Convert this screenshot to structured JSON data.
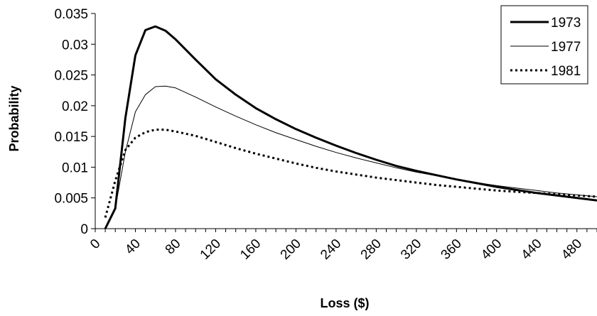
{
  "chart_data": {
    "type": "line",
    "title": "",
    "xlabel": "Loss ($)",
    "ylabel": "Probability",
    "xlim": [
      0,
      500
    ],
    "ylim": [
      0,
      0.035
    ],
    "x_ticks": [
      "0",
      "40",
      "80",
      "120",
      "160",
      "200",
      "240",
      "280",
      "320",
      "360",
      "400",
      "440",
      "480"
    ],
    "y_ticks": [
      "0",
      "0.005",
      "0.01",
      "0.015",
      "0.02",
      "0.025",
      "0.03",
      "0.035"
    ],
    "grid": false,
    "legend_position": "top-right",
    "series": [
      {
        "name": "1973",
        "style": "thick-solid",
        "x": [
          10,
          20,
          30,
          40,
          50,
          60,
          70,
          80,
          100,
          120,
          140,
          160,
          180,
          200,
          220,
          240,
          260,
          280,
          300,
          320,
          340,
          360,
          380,
          400,
          420,
          440,
          460,
          480,
          500
        ],
        "y": [
          0.0,
          0.0033,
          0.018,
          0.0282,
          0.0323,
          0.0329,
          0.0322,
          0.0308,
          0.0275,
          0.0243,
          0.0218,
          0.0196,
          0.0178,
          0.0162,
          0.0148,
          0.0135,
          0.0123,
          0.0112,
          0.0102,
          0.0094,
          0.0087,
          0.008,
          0.0074,
          0.0068,
          0.0063,
          0.0058,
          0.0054,
          0.005,
          0.0046
        ]
      },
      {
        "name": "1977",
        "style": "thin-solid",
        "x": [
          10,
          20,
          30,
          40,
          50,
          60,
          70,
          80,
          100,
          120,
          140,
          160,
          180,
          200,
          220,
          240,
          260,
          280,
          300,
          320,
          340,
          360,
          380,
          400,
          420,
          440,
          460,
          480,
          500
        ],
        "y": [
          0.0,
          0.0033,
          0.0125,
          0.019,
          0.0218,
          0.0231,
          0.0232,
          0.0229,
          0.0214,
          0.0198,
          0.0183,
          0.0169,
          0.0156,
          0.0145,
          0.0134,
          0.0124,
          0.0115,
          0.0107,
          0.0099,
          0.0092,
          0.0086,
          0.008,
          0.0075,
          0.007,
          0.0066,
          0.0062,
          0.0058,
          0.0055,
          0.0052
        ]
      },
      {
        "name": "1981",
        "style": "dotted",
        "x": [
          10,
          20,
          30,
          40,
          50,
          60,
          70,
          80,
          100,
          120,
          140,
          160,
          180,
          200,
          220,
          240,
          260,
          280,
          300,
          320,
          340,
          360,
          380,
          400,
          420,
          440,
          460,
          480,
          500
        ],
        "y": [
          0.0018,
          0.0078,
          0.0128,
          0.0148,
          0.0157,
          0.0161,
          0.0161,
          0.0158,
          0.0151,
          0.0141,
          0.0131,
          0.0122,
          0.0114,
          0.0106,
          0.0099,
          0.0093,
          0.0088,
          0.0083,
          0.0079,
          0.0075,
          0.0071,
          0.0068,
          0.0065,
          0.0062,
          0.006,
          0.0058,
          0.0056,
          0.0054,
          0.0052
        ]
      }
    ]
  }
}
